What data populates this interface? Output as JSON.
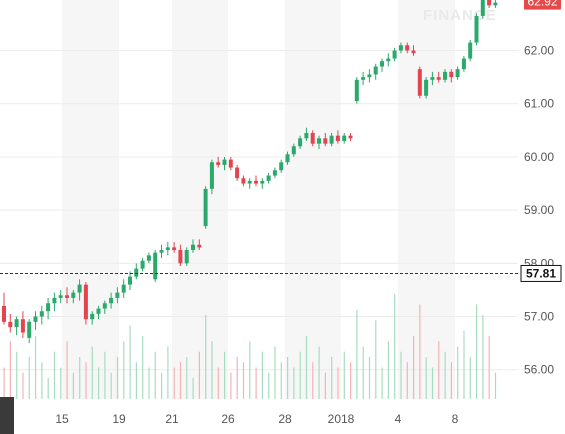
{
  "watermark": "FINANCE",
  "chart_data": {
    "type": "candlestick",
    "ylim": [
      55.45,
      62.95
    ],
    "yticks": [
      56,
      57,
      58,
      59,
      60,
      61,
      62
    ],
    "ytick_labels": [
      "56.00",
      "57.00",
      "58.00",
      "59.00",
      "60.00",
      "61.00",
      "62.00"
    ],
    "xtick_labels": [
      "15",
      "19",
      "21",
      "26",
      "28",
      "2018",
      "4",
      "8"
    ],
    "last_price": 62.92,
    "last_price_label": "62.92",
    "reference_price": 57.81,
    "reference_price_label": "57.81",
    "colors": {
      "up": "#2aa96b",
      "down": "#e3454f",
      "reference": "#111111",
      "last_tag": "#e64949"
    },
    "candles": [
      [
        57.2,
        57.45,
        56.85,
        56.9
      ],
      [
        56.9,
        57.05,
        56.7,
        56.8
      ],
      [
        56.8,
        57.0,
        56.65,
        56.95
      ],
      [
        56.95,
        57.1,
        56.6,
        56.7
      ],
      [
        56.6,
        56.95,
        56.5,
        56.9
      ],
      [
        56.9,
        57.1,
        56.75,
        57.0
      ],
      [
        57.0,
        57.2,
        56.85,
        57.1
      ],
      [
        57.1,
        57.35,
        56.95,
        57.25
      ],
      [
        57.25,
        57.45,
        57.1,
        57.35
      ],
      [
        57.35,
        57.5,
        57.25,
        57.4
      ],
      [
        57.4,
        57.55,
        57.25,
        57.35
      ],
      [
        57.35,
        57.5,
        57.25,
        57.45
      ],
      [
        57.45,
        57.7,
        57.3,
        57.6
      ],
      [
        57.6,
        57.65,
        56.85,
        56.95
      ],
      [
        56.95,
        57.1,
        56.85,
        57.05
      ],
      [
        57.05,
        57.2,
        56.95,
        57.15
      ],
      [
        57.15,
        57.3,
        57.05,
        57.25
      ],
      [
        57.25,
        57.45,
        57.15,
        57.35
      ],
      [
        57.35,
        57.55,
        57.25,
        57.45
      ],
      [
        57.45,
        57.7,
        57.35,
        57.6
      ],
      [
        57.6,
        57.85,
        57.5,
        57.75
      ],
      [
        57.75,
        58.0,
        57.7,
        57.9
      ],
      [
        57.9,
        58.1,
        57.85,
        58.05
      ],
      [
        58.05,
        58.2,
        58.0,
        58.15
      ],
      [
        57.7,
        58.25,
        57.65,
        58.2
      ],
      [
        58.2,
        58.35,
        58.1,
        58.25
      ],
      [
        58.25,
        58.4,
        58.15,
        58.3
      ],
      [
        58.3,
        58.4,
        58.2,
        58.25
      ],
      [
        58.25,
        58.35,
        57.95,
        58.0
      ],
      [
        58.0,
        58.3,
        57.95,
        58.25
      ],
      [
        58.25,
        58.45,
        58.2,
        58.35
      ],
      [
        58.35,
        58.45,
        58.25,
        58.3
      ],
      [
        58.7,
        59.45,
        58.65,
        59.4
      ],
      [
        59.4,
        59.95,
        59.3,
        59.9
      ],
      [
        59.9,
        60.0,
        59.8,
        59.85
      ],
      [
        59.85,
        60.0,
        59.75,
        59.95
      ],
      [
        59.95,
        60.0,
        59.75,
        59.8
      ],
      [
        59.8,
        59.85,
        59.55,
        59.6
      ],
      [
        59.6,
        59.65,
        59.45,
        59.5
      ],
      [
        59.5,
        59.6,
        59.4,
        59.55
      ],
      [
        59.55,
        59.65,
        59.45,
        59.5
      ],
      [
        59.5,
        59.6,
        59.4,
        59.55
      ],
      [
        59.55,
        59.7,
        59.5,
        59.65
      ],
      [
        59.65,
        59.8,
        59.6,
        59.75
      ],
      [
        59.75,
        59.95,
        59.7,
        59.9
      ],
      [
        59.9,
        60.1,
        59.85,
        60.05
      ],
      [
        60.05,
        60.25,
        60.0,
        60.2
      ],
      [
        60.2,
        60.4,
        60.15,
        60.35
      ],
      [
        60.35,
        60.55,
        60.3,
        60.45
      ],
      [
        60.45,
        60.5,
        60.2,
        60.25
      ],
      [
        60.25,
        60.4,
        60.15,
        60.35
      ],
      [
        60.35,
        60.45,
        60.2,
        60.25
      ],
      [
        60.25,
        60.45,
        60.2,
        60.4
      ],
      [
        60.4,
        60.5,
        60.25,
        60.3
      ],
      [
        60.3,
        60.45,
        60.25,
        60.4
      ],
      [
        60.4,
        60.45,
        60.3,
        60.35
      ],
      [
        61.05,
        61.5,
        61.0,
        61.45
      ],
      [
        61.45,
        61.6,
        61.35,
        61.5
      ],
      [
        61.5,
        61.65,
        61.4,
        61.55
      ],
      [
        61.55,
        61.75,
        61.45,
        61.7
      ],
      [
        61.7,
        61.85,
        61.6,
        61.8
      ],
      [
        61.8,
        61.95,
        61.7,
        61.85
      ],
      [
        61.85,
        62.05,
        61.8,
        62.0
      ],
      [
        62.0,
        62.15,
        61.95,
        62.1
      ],
      [
        62.1,
        62.15,
        61.95,
        62.0
      ],
      [
        62.0,
        62.1,
        61.9,
        61.95
      ],
      [
        61.65,
        61.7,
        61.1,
        61.15
      ],
      [
        61.15,
        61.5,
        61.1,
        61.45
      ],
      [
        61.45,
        61.6,
        61.35,
        61.5
      ],
      [
        61.5,
        61.6,
        61.4,
        61.45
      ],
      [
        61.45,
        61.65,
        61.4,
        61.6
      ],
      [
        61.6,
        61.65,
        61.4,
        61.5
      ],
      [
        61.5,
        61.7,
        61.45,
        61.65
      ],
      [
        61.65,
        61.9,
        61.6,
        61.85
      ],
      [
        61.85,
        62.2,
        61.8,
        62.15
      ],
      [
        62.15,
        62.7,
        62.1,
        62.65
      ],
      [
        62.65,
        63.1,
        62.6,
        63.0
      ],
      [
        63.0,
        63.15,
        62.8,
        62.85
      ],
      [
        62.85,
        62.95,
        62.8,
        62.9
      ]
    ],
    "volumes": [
      0.3,
      0.55,
      0.45,
      0.25,
      0.4,
      0.6,
      0.35,
      0.2,
      0.45,
      0.3,
      0.55,
      0.25,
      0.4,
      0.35,
      0.5,
      0.3,
      0.45,
      0.25,
      0.4,
      0.55,
      0.7,
      0.35,
      0.6,
      0.3,
      0.45,
      0.25,
      0.5,
      0.3,
      0.35,
      0.4,
      0.2,
      0.45,
      0.8,
      0.55,
      0.3,
      0.45,
      0.25,
      0.4,
      0.35,
      0.55,
      0.3,
      0.45,
      0.25,
      0.5,
      0.35,
      0.4,
      0.3,
      0.45,
      0.6,
      0.35,
      0.5,
      0.25,
      0.4,
      0.3,
      0.45,
      0.35,
      0.85,
      0.5,
      0.4,
      0.75,
      0.3,
      0.55,
      1.0,
      0.45,
      0.35,
      0.6,
      0.9,
      0.4,
      0.3,
      0.55,
      0.45,
      0.35,
      0.5,
      0.65,
      0.4,
      0.9,
      0.8,
      0.6,
      0.25
    ]
  }
}
